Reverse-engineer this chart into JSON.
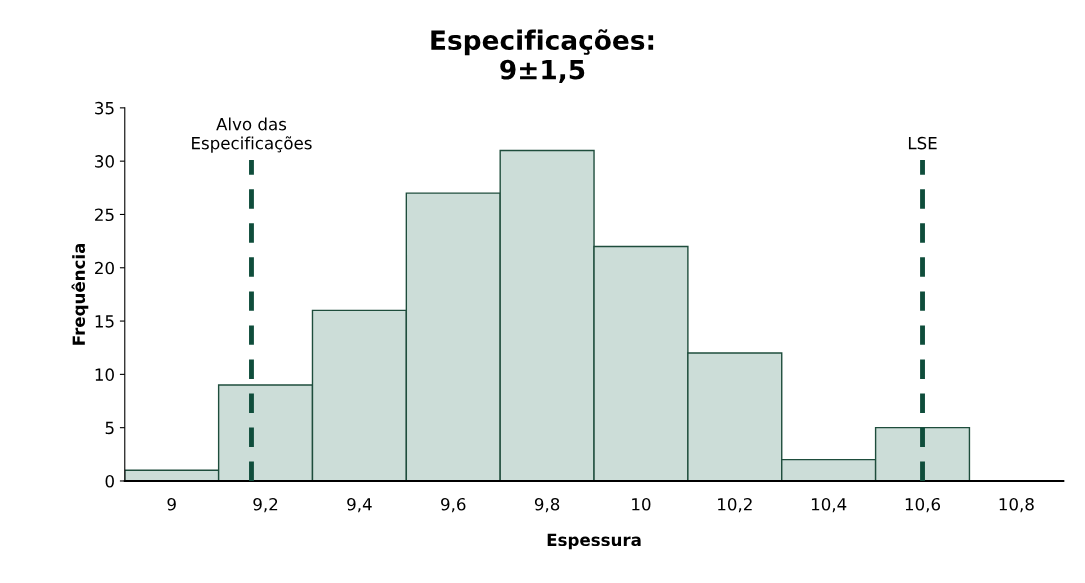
{
  "chart_data": {
    "type": "histogram",
    "title": "Especificações:\n9±1,5",
    "xlabel": "Espessura",
    "ylabel": "Frequência",
    "bins": [
      8.9,
      9.1,
      9.3,
      9.5,
      9.7,
      9.9,
      10.1,
      10.3,
      10.5,
      10.7
    ],
    "values": [
      1,
      9,
      16,
      27,
      31,
      22,
      12,
      2,
      5
    ],
    "color": "#ccddd8",
    "xlim": [
      8.9,
      10.9
    ],
    "xticks": [
      {
        "value": 9,
        "label": "9"
      },
      {
        "value": 9.2,
        "label": "9,2"
      },
      {
        "value": 9.4,
        "label": "9,4"
      },
      {
        "value": 9.6,
        "label": "9,6"
      },
      {
        "value": 9.8,
        "label": "9,8"
      },
      {
        "value": 10,
        "label": "10"
      },
      {
        "value": 10.2,
        "label": "10,2"
      },
      {
        "value": 10.4,
        "label": "10,4"
      },
      {
        "value": 10.6,
        "label": "10,6"
      },
      {
        "value": 10.8,
        "label": "10,8"
      }
    ],
    "ylim": [
      0,
      35
    ],
    "yticks": [
      0,
      5,
      10,
      15,
      20,
      25,
      30,
      35
    ],
    "ref_lines": [
      {
        "axis": "x",
        "value": 9.17,
        "label": "Alvo das\nEspecificações",
        "color": "#0f4d3b",
        "line_style": "dashed"
      },
      {
        "axis": "x",
        "value": 10.6,
        "label": "LSE",
        "color": "#0f4d3b",
        "line_style": "dashed"
      }
    ],
    "grid": false,
    "legend": false
  }
}
